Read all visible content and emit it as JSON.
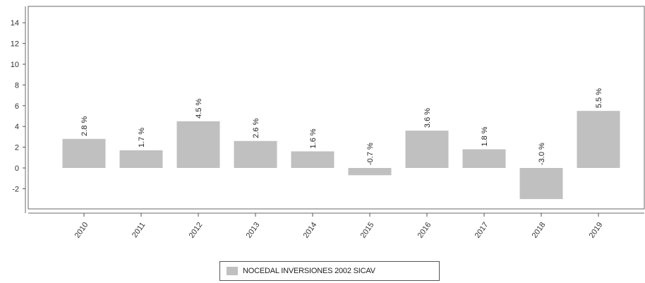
{
  "chart_data": {
    "type": "bar",
    "categories": [
      "2010",
      "2011",
      "2012",
      "2013",
      "2014",
      "2015",
      "2016",
      "2017",
      "2018",
      "2019"
    ],
    "series": [
      {
        "name": "NOCEDAL INVERSIONES 2002 SICAV",
        "values": [
          2.8,
          1.7,
          4.5,
          2.6,
          1.6,
          -0.7,
          3.6,
          1.8,
          -3.0,
          5.5
        ],
        "labels": [
          "2.8 %",
          "1.7 %",
          "4.5 %",
          "2.6 %",
          "1.6 %",
          "-0.7 %",
          "3.6 %",
          "1.8 %",
          "-3.0 %",
          "5.5 %"
        ]
      }
    ],
    "yticks": [
      "14",
      "12",
      "10",
      "8",
      "6",
      "4",
      "2",
      "0",
      "-2"
    ],
    "ylim": [
      -4,
      15.5
    ],
    "grid": false,
    "legend_position": "bottom",
    "bar_color": "#c0c0c0",
    "axis_color": "#555555",
    "title": "",
    "xlabel": "",
    "ylabel": ""
  }
}
